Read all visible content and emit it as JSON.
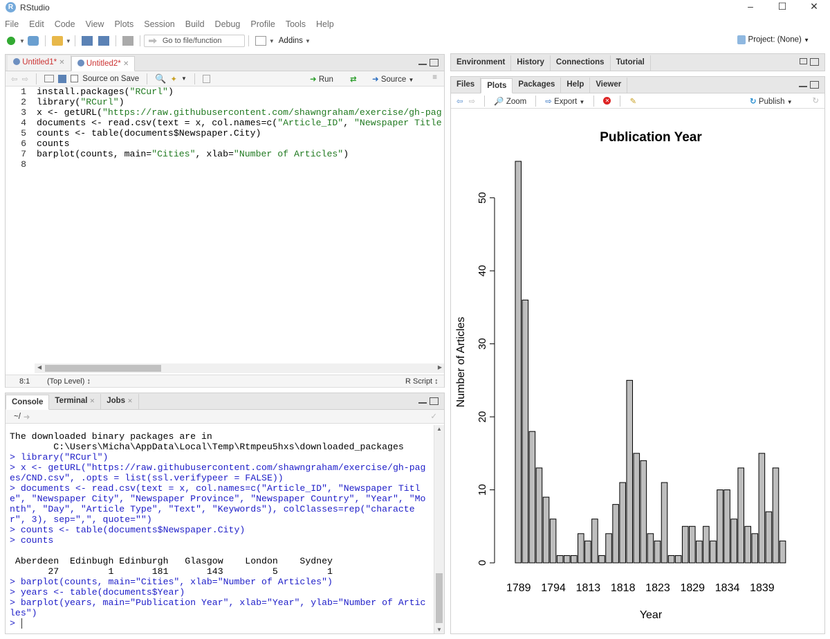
{
  "window": {
    "title": "RStudio",
    "logo": "R"
  },
  "menu": [
    "File",
    "Edit",
    "Code",
    "View",
    "Plots",
    "Session",
    "Build",
    "Debug",
    "Profile",
    "Tools",
    "Help"
  ],
  "toolbar": {
    "goto_placeholder": "Go to file/function",
    "addins": "Addins",
    "project": "Project: (None)"
  },
  "editor": {
    "tabs": [
      "Untitled1*",
      "Untitled2*"
    ],
    "source_on_save": "Source on Save",
    "run": "Run",
    "source": "Source",
    "lines": [
      {
        "n": "1",
        "code": [
          {
            "t": "install.packages(",
            "c": "k"
          },
          {
            "t": "\"RCurl\"",
            "c": "s"
          },
          {
            "t": ")",
            "c": "k"
          }
        ]
      },
      {
        "n": "2",
        "code": [
          {
            "t": "library(",
            "c": "k"
          },
          {
            "t": "\"RCurl\"",
            "c": "s"
          },
          {
            "t": ")",
            "c": "k"
          }
        ]
      },
      {
        "n": "3",
        "code": [
          {
            "t": "x <- getURL(",
            "c": "k"
          },
          {
            "t": "\"https://raw.githubusercontent.com/shawngraham/exercise/gh-pag",
            "c": "s"
          }
        ]
      },
      {
        "n": "4",
        "code": [
          {
            "t": "documents <- read.csv(text = x, col.names=c(",
            "c": "k"
          },
          {
            "t": "\"Article_ID\"",
            "c": "s"
          },
          {
            "t": ", ",
            "c": "k"
          },
          {
            "t": "\"Newspaper Title",
            "c": "s"
          }
        ]
      },
      {
        "n": "5",
        "code": [
          {
            "t": "counts <- table(documents$Newspaper.City)",
            "c": "k"
          }
        ]
      },
      {
        "n": "6",
        "code": [
          {
            "t": "counts",
            "c": "k"
          }
        ]
      },
      {
        "n": "7",
        "code": [
          {
            "t": "barplot(counts, main=",
            "c": "k"
          },
          {
            "t": "\"Cities\"",
            "c": "s"
          },
          {
            "t": ", xlab=",
            "c": "k"
          },
          {
            "t": "\"Number of Articles\"",
            "c": "s"
          },
          {
            "t": ")",
            "c": "k"
          }
        ]
      },
      {
        "n": "8",
        "code": []
      }
    ],
    "status_pos": "8:1",
    "status_scope": "(Top Level) ↕",
    "status_type": "R Script ↕"
  },
  "console": {
    "tabs": [
      "Console",
      "Terminal",
      "Jobs"
    ],
    "path": "~/",
    "lines": [
      {
        "t": "The downloaded binary packages are in",
        "c": "k"
      },
      {
        "t": "        C:\\Users\\Micha\\AppData\\Local\\Temp\\Rtmpeu5hxs\\downloaded_packages",
        "c": "k"
      },
      {
        "t": "> library(\"RCurl\")",
        "c": "b"
      },
      {
        "t": "> x <- getURL(\"https://raw.githubusercontent.com/shawngraham/exercise/gh-pag",
        "c": "b"
      },
      {
        "t": "es/CND.csv\", .opts = list(ssl.verifypeer = FALSE))",
        "c": "b"
      },
      {
        "t": "> documents <- read.csv(text = x, col.names=c(\"Article_ID\", \"Newspaper Titl",
        "c": "b"
      },
      {
        "t": "e\", \"Newspaper City\", \"Newspaper Province\", \"Newspaper Country\", \"Year\", \"Mo",
        "c": "b"
      },
      {
        "t": "nth\", \"Day\", \"Article Type\", \"Text\", \"Keywords\"), colClasses=rep(\"characte",
        "c": "b"
      },
      {
        "t": "r\", 3), sep=\",\", quote=\"\")",
        "c": "b"
      },
      {
        "t": "> counts <- table(documents$Newspaper.City)",
        "c": "b"
      },
      {
        "t": "> counts",
        "c": "b"
      },
      {
        "t": "",
        "c": "k"
      },
      {
        "t": " Aberdeen  Edinbugh Edinburgh   Glasgow    London    Sydney ",
        "c": "k"
      },
      {
        "t": "       27         1       181       143         5         1 ",
        "c": "k"
      },
      {
        "t": "> barplot(counts, main=\"Cities\", xlab=\"Number of Articles\")",
        "c": "b"
      },
      {
        "t": "> years <- table(documents$Year)",
        "c": "b"
      },
      {
        "t": "> barplot(years, main=\"Publication Year\", xlab=\"Year\", ylab=\"Number of Artic",
        "c": "b"
      },
      {
        "t": "les\")",
        "c": "b"
      },
      {
        "t": "> ",
        "c": "b"
      }
    ]
  },
  "env_pane": {
    "tabs": [
      "Environment",
      "History",
      "Connections",
      "Tutorial"
    ]
  },
  "files_pane": {
    "tabs": [
      "Files",
      "Plots",
      "Packages",
      "Help",
      "Viewer"
    ],
    "zoom": "Zoom",
    "export": "Export",
    "publish": "Publish"
  },
  "chart_data": {
    "type": "bar",
    "title": "Publication Year",
    "xlabel": "Year",
    "ylabel": "Number of Articles",
    "ylim": [
      0,
      55
    ],
    "yticks": [
      0,
      10,
      20,
      30,
      40,
      50
    ],
    "xtick_labels": [
      "1789",
      "1794",
      "1813",
      "1818",
      "1823",
      "1829",
      "1834",
      "1839"
    ],
    "values": [
      55,
      36,
      18,
      13,
      9,
      6,
      1,
      1,
      1,
      4,
      3,
      6,
      1,
      4,
      8,
      11,
      25,
      15,
      14,
      4,
      3,
      11,
      1,
      1,
      5,
      5,
      3,
      5,
      3,
      10,
      10,
      6,
      13,
      5,
      4,
      15,
      7,
      13,
      3
    ],
    "bar_color": "#bebebe"
  }
}
